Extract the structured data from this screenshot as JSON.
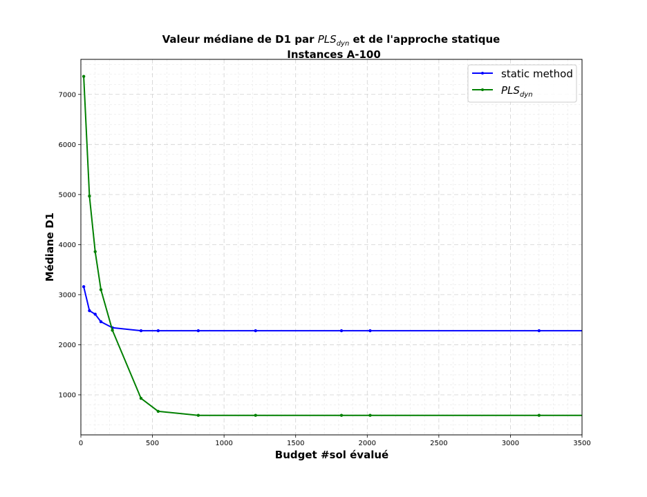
{
  "chart_data": {
    "type": "line",
    "title_prefix": "Valeur médiane de D1 par ",
    "title_math": "PLS",
    "title_math_sub": "dyn",
    "title_suffix": " et de l'approche statique",
    "subtitle": "Instances  A-100",
    "xlabel": "Budget #sol évalué",
    "ylabel": "Médiane D1",
    "xlim": [
      0,
      3500
    ],
    "ylim": [
      200,
      7700
    ],
    "xticks": [
      0,
      500,
      1000,
      1500,
      2000,
      2500,
      3000,
      3500
    ],
    "yticks": [
      1000,
      2000,
      3000,
      4000,
      5000,
      6000,
      7000
    ],
    "grid": true,
    "legend_position": "top-right",
    "series": [
      {
        "name": "static method",
        "color": "#0000ff",
        "x": [
          20,
          60,
          100,
          140,
          220,
          420,
          540,
          820,
          1220,
          1820,
          2020,
          3200,
          3500
        ],
        "y": [
          3160,
          2680,
          2610,
          2460,
          2340,
          2280,
          2280,
          2280,
          2280,
          2280,
          2280,
          2280,
          2280
        ]
      },
      {
        "name": "PLS",
        "name_sub": "dyn",
        "color": "#008000",
        "x": [
          20,
          60,
          100,
          140,
          220,
          420,
          540,
          820,
          1220,
          1820,
          2020,
          3200,
          3500
        ],
        "y": [
          7360,
          4970,
          3860,
          3100,
          2290,
          930,
          670,
          590,
          590,
          590,
          590,
          590,
          590
        ]
      }
    ]
  }
}
